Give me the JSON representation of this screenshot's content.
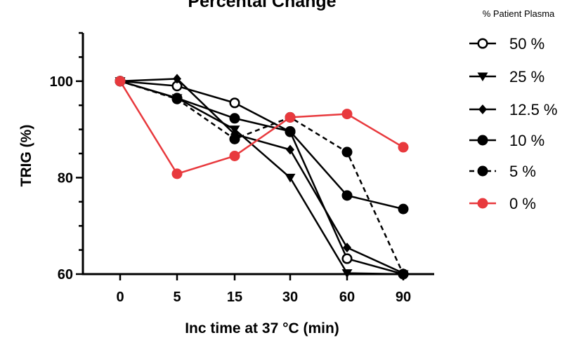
{
  "chart_data": {
    "type": "line",
    "title": "Percental Change",
    "xlabel": "Inc time at 37 °C (min)",
    "ylabel": "TRIG (%)",
    "categories": [
      "0",
      "5",
      "15",
      "30",
      "60",
      "90"
    ],
    "yticks": [
      "60",
      "80",
      "100"
    ],
    "ylim": [
      60,
      110
    ],
    "legend_title": "% Patient Plasma",
    "legend_position": "right",
    "series": [
      {
        "name": "50 %",
        "values": [
          100,
          99.0,
          95.5,
          89.5,
          63.2,
          60.0
        ],
        "marker": "circle-open",
        "color": "#000000",
        "dash": "solid"
      },
      {
        "name": "25 %",
        "values": [
          100,
          96.5,
          90.0,
          80.0,
          60.2,
          60.0
        ],
        "marker": "triangle-down",
        "color": "#000000",
        "dash": "solid"
      },
      {
        "name": "12.5 %",
        "values": [
          100,
          100.5,
          89.0,
          85.8,
          65.5,
          60.2
        ],
        "marker": "diamond",
        "color": "#000000",
        "dash": "solid"
      },
      {
        "name": "10 %",
        "values": [
          100,
          96.5,
          92.3,
          89.6,
          76.3,
          73.5
        ],
        "marker": "circle-filled",
        "color": "#000000",
        "dash": "solid"
      },
      {
        "name": "5 %",
        "values": [
          100,
          96.3,
          88.0,
          92.5,
          85.3,
          60.0
        ],
        "marker": "circle-filled",
        "color": "#000000",
        "dash": "dashed"
      },
      {
        "name": "0 %",
        "values": [
          100,
          80.8,
          84.5,
          92.5,
          93.2,
          86.3
        ],
        "marker": "circle-filled",
        "color": "#e8393d",
        "dash": "solid"
      }
    ]
  }
}
